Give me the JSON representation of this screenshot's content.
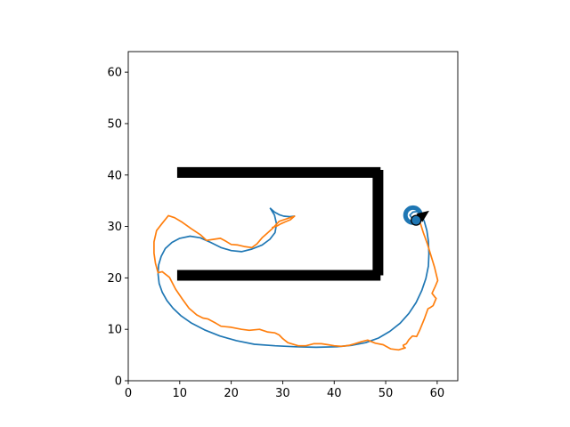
{
  "chart_data": {
    "type": "line",
    "title": "",
    "xlabel": "",
    "ylabel": "",
    "xlim": [
      0,
      64
    ],
    "ylim": [
      0,
      64
    ],
    "grid": false,
    "xticks": [
      "0",
      "10",
      "20",
      "30",
      "40",
      "50",
      "60"
    ],
    "yticks": [
      "0",
      "10",
      "20",
      "30",
      "40",
      "50",
      "60"
    ],
    "colors": {
      "planned": "#1f77b4",
      "measured": "#ff7f0e",
      "wall": "#000000",
      "goal": "#1f77b4",
      "robot": "#1f77b4"
    },
    "walls": [
      {
        "x": [
          9.5,
          49
        ],
        "y": [
          40.5,
          40.5
        ]
      },
      {
        "x": [
          48.5,
          48.5
        ],
        "y": [
          20.5,
          41
        ]
      },
      {
        "x": [
          9.5,
          49
        ],
        "y": [
          20.5,
          20.5
        ]
      }
    ],
    "series": [
      {
        "x": [
          27.6,
          28.4,
          29.3,
          30.2,
          31.4,
          32.3
        ],
        "y": [
          33.5,
          32.8,
          32.3,
          32.0,
          31.9,
          32.0
        ]
      },
      {
        "x": [
          27.6,
          28.4,
          28.8,
          28.5,
          27.5,
          26,
          24,
          22,
          20,
          18,
          16,
          14,
          12,
          10,
          8.5,
          7.2,
          6.4,
          5.9,
          5.8,
          6,
          6.6,
          7.5,
          8.7,
          10.3,
          12.3,
          14.8,
          17.8,
          21,
          24.5,
          28.5,
          32.5,
          36.5,
          40.5,
          43.5,
          46.1,
          48.6,
          50.8,
          52.8,
          54.5,
          55.9,
          57.0,
          57.8,
          58.3,
          58.4,
          58.3,
          58.0,
          57.5,
          56.9,
          56.1,
          55.3,
          54.7,
          55.3
        ],
        "y": [
          33.5,
          32.2,
          30.5,
          28.8,
          27.5,
          26.4,
          25.6,
          25.1,
          25.3,
          25.9,
          26.9,
          27.8,
          28.1,
          27.7,
          26.9,
          25.7,
          24.2,
          22.5,
          20.7,
          18.9,
          17.2,
          15.6,
          14.1,
          12.6,
          11.2,
          9.9,
          8.7,
          7.8,
          7.1,
          6.8,
          6.6,
          6.5,
          6.6,
          6.9,
          7.4,
          8.3,
          9.6,
          11.2,
          13.1,
          15.2,
          17.5,
          19.9,
          22.3,
          24.7,
          27.1,
          29.2,
          31.0,
          32.3,
          32.9,
          32.8,
          32.2,
          31.3
        ]
      },
      {
        "x": [
          28,
          28.9,
          29.6,
          30.5,
          31.5,
          32.3,
          30.5,
          29.3,
          28,
          27,
          26,
          25,
          24,
          22.5,
          21.3,
          20,
          19,
          17.9,
          16.6,
          15.2,
          14,
          12.2,
          10.5,
          9,
          7.8,
          6.5,
          5.5,
          5,
          5,
          5.3,
          5.8,
          6.6,
          8,
          9.2,
          10.5,
          11.8,
          12.5,
          13.3,
          14.5,
          15.5,
          17,
          18,
          20,
          22,
          23.5,
          25.5,
          27,
          28.5,
          29.3,
          30,
          31,
          33,
          34.5,
          36,
          37.5,
          38.8,
          40,
          41.5,
          43,
          44,
          45.3,
          46.5,
          48,
          49.5,
          51,
          52.5,
          53.8,
          53.5,
          53.4,
          54,
          54.5,
          55.2,
          56,
          56.6,
          57.5,
          58.2,
          58.6,
          59.2,
          59.8,
          59.6,
          59,
          59.6,
          60.1,
          59.5,
          58.9,
          58.1,
          57.3,
          56.8,
          56.3,
          55.7,
          55.2
        ],
        "y": [
          29.8,
          30.1,
          30.5,
          30.9,
          31.3,
          32.0,
          31.4,
          31.0,
          29.6,
          28.7,
          27.8,
          26.6,
          25.9,
          26.1,
          26.4,
          26.5,
          27.1,
          27.7,
          27.5,
          27.3,
          28.4,
          29.6,
          30.8,
          31.7,
          32.1,
          30.5,
          29.2,
          27.0,
          24.8,
          22.8,
          21.0,
          21.2,
          20.1,
          17.8,
          15.9,
          14.1,
          13.5,
          12.8,
          12.2,
          12.0,
          11.2,
          10.6,
          10.4,
          10.0,
          9.8,
          10.0,
          9.5,
          9.3,
          8.9,
          8.2,
          7.4,
          6.8,
          6.8,
          7.2,
          7.2,
          7.0,
          6.8,
          6.7,
          6.9,
          7.2,
          7.6,
          7.9,
          7.3,
          7.0,
          6.2,
          6.0,
          6.4,
          6.6,
          6.9,
          7.2,
          8.0,
          8.7,
          8.6,
          9.8,
          12.0,
          14.0,
          14.2,
          14.6,
          16.0,
          16.2,
          17.0,
          18.3,
          19.5,
          22.0,
          24.0,
          26.6,
          28.8,
          30.4,
          31.2,
          31.4,
          31.6
        ]
      }
    ],
    "goal": {
      "x": 55.3,
      "y": 32.2
    },
    "robot": {
      "x": 55.9,
      "y": 31.2,
      "heading_deg": 36
    }
  }
}
